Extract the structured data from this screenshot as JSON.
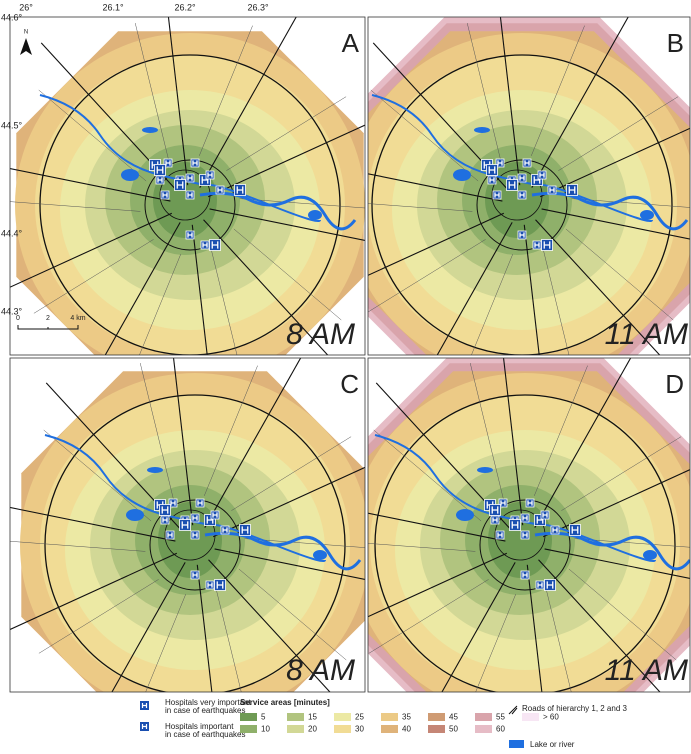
{
  "axes": {
    "top": [
      "26°",
      "26.1°",
      "26.2°",
      "26.3°"
    ],
    "left": [
      "44.6°",
      "44.5°",
      "44.4°",
      "44.3°"
    ]
  },
  "panels": [
    {
      "letter": "A",
      "time": "8 AM"
    },
    {
      "letter": "B",
      "time": "11 AM"
    },
    {
      "letter": "C",
      "time": "8 AM"
    },
    {
      "letter": "D",
      "time": "11 AM"
    }
  ],
  "north": "N",
  "scale_bar": [
    "0",
    "2",
    "4 km"
  ],
  "legend": {
    "hospitals_very_important": [
      "Hospitals very important",
      "in case of earthquakes"
    ],
    "hospitals_important": [
      "Hospitals important",
      "in case of earthquakes"
    ],
    "service_title": "Service areas [minutes]",
    "classes": [
      {
        "label": "5",
        "color": "#6e9a54"
      },
      {
        "label": "10",
        "color": "#8fb06a"
      },
      {
        "label": "15",
        "color": "#b1c47f"
      },
      {
        "label": "20",
        "color": "#d2d896"
      },
      {
        "label": "25",
        "color": "#ece9a4"
      },
      {
        "label": "30",
        "color": "#f1dc95"
      },
      {
        "label": "35",
        "color": "#ecca86"
      },
      {
        "label": "40",
        "color": "#dfb37a"
      },
      {
        "label": "45",
        "color": "#cf9b73"
      },
      {
        "label": "50",
        "color": "#c58676"
      },
      {
        "label": "55",
        "color": "#d9a4ab"
      },
      {
        "label": "60",
        "color": "#e6bcc6"
      },
      {
        "label": "> 60",
        "color": "#f7e6f4"
      }
    ],
    "roads": "Roads of hierarchy 1, 2 and 3",
    "lake": "Lake or river"
  }
}
